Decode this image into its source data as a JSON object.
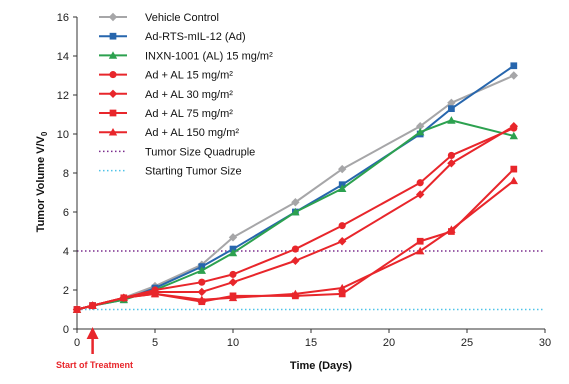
{
  "chart_data": {
    "type": "line",
    "xlabel": "Time (Days)",
    "ylabel": "Tumor Volume V/V",
    "ylabel_subscript": "0",
    "xlim": [
      0,
      30
    ],
    "ylim": [
      0,
      16
    ],
    "x_ticks": [
      0,
      5,
      10,
      15,
      20,
      25,
      30
    ],
    "y_ticks": [
      0,
      2,
      4,
      6,
      8,
      10,
      12,
      14,
      16
    ],
    "grid": false,
    "legend_position": "top-left",
    "annotation": {
      "text": "Start of Treatment",
      "x": 1
    },
    "reference_lines": [
      {
        "name": "Tumor Size Quadruple",
        "y": 4,
        "color": "#7b2d8e"
      },
      {
        "name": "Starting Tumor Size",
        "y": 1,
        "color": "#4fc3e8"
      }
    ],
    "series": [
      {
        "name": "Vehicle Control",
        "marker": "diamond",
        "color": "#a6a6a8",
        "x": [
          0,
          1,
          3,
          5,
          8,
          10,
          14,
          17,
          22,
          24,
          28
        ],
        "y": [
          1.0,
          1.2,
          1.6,
          2.2,
          3.3,
          4.7,
          6.5,
          8.2,
          10.4,
          11.6,
          13.0
        ]
      },
      {
        "name": "Ad-RTS-mIL-12 (Ad)",
        "marker": "square",
        "color": "#2766ad",
        "x": [
          0,
          1,
          3,
          5,
          8,
          10,
          14,
          17,
          22,
          24,
          28
        ],
        "y": [
          1.0,
          1.2,
          1.5,
          2.1,
          3.2,
          4.1,
          6.0,
          7.4,
          10.0,
          11.3,
          13.5
        ]
      },
      {
        "name": "INXN-1001 (AL) 15 mg/m²",
        "marker": "triangle",
        "color": "#2ca14f",
        "x": [
          0,
          1,
          3,
          5,
          8,
          10,
          14,
          17,
          22,
          24,
          28
        ],
        "y": [
          1.0,
          1.2,
          1.5,
          2.0,
          3.0,
          3.9,
          6.0,
          7.2,
          10.1,
          10.7,
          9.9
        ]
      },
      {
        "name": "Ad + AL 15 mg/m²",
        "marker": "circle",
        "color": "#e8262b",
        "x": [
          0,
          1,
          3,
          5,
          8,
          10,
          14,
          17,
          22,
          24,
          28
        ],
        "y": [
          1.0,
          1.2,
          1.6,
          2.0,
          2.4,
          2.8,
          4.1,
          5.3,
          7.5,
          8.9,
          10.3
        ]
      },
      {
        "name": "Ad + AL 30 mg/m²",
        "marker": "diamond",
        "color": "#e8262b",
        "x": [
          0,
          1,
          3,
          5,
          8,
          10,
          14,
          17,
          22,
          24,
          28
        ],
        "y": [
          1.0,
          1.2,
          1.6,
          1.9,
          1.9,
          2.4,
          3.5,
          4.5,
          6.9,
          8.5,
          10.4
        ]
      },
      {
        "name": "Ad + AL 75 mg/m²",
        "marker": "square",
        "color": "#e8262b",
        "x": [
          0,
          1,
          3,
          5,
          8,
          10,
          14,
          17,
          22,
          24,
          28
        ],
        "y": [
          1.0,
          1.2,
          1.6,
          1.8,
          1.4,
          1.7,
          1.7,
          1.8,
          4.5,
          5.0,
          8.2
        ]
      },
      {
        "name": "Ad + AL 150 mg/m²",
        "marker": "triangle",
        "color": "#e8262b",
        "x": [
          0,
          1,
          3,
          5,
          8,
          10,
          14,
          17,
          22,
          24,
          28
        ],
        "y": [
          1.0,
          1.2,
          1.6,
          1.8,
          1.5,
          1.6,
          1.8,
          2.1,
          4.0,
          5.1,
          7.6
        ]
      }
    ]
  }
}
